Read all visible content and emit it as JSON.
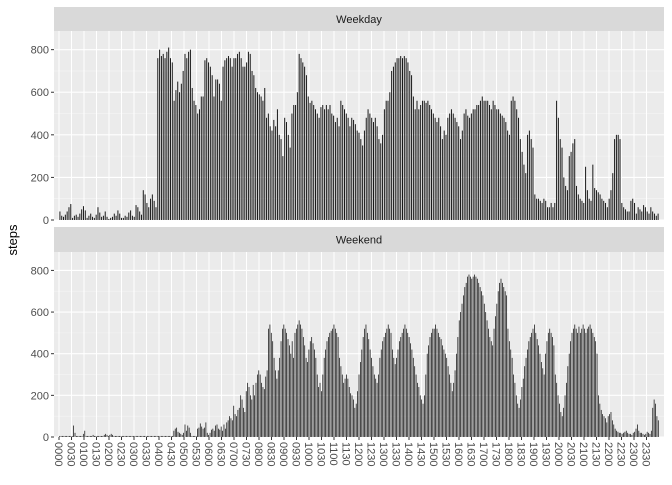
{
  "chart_data": {
    "type": "bar",
    "ylabel": "steps",
    "xlabel": "",
    "ylim": [
      0,
      850
    ],
    "yticks": [
      0,
      200,
      400,
      600,
      800
    ],
    "grid": true,
    "x_tick_labels": [
      "0000",
      "0030",
      "0100",
      "0130",
      "0200",
      "0230",
      "0300",
      "0330",
      "0400",
      "0430",
      "0500",
      "0530",
      "0600",
      "0630",
      "0700",
      "0730",
      "0800",
      "0830",
      "0900",
      "0930",
      "1000",
      "1030",
      "1100",
      "1130",
      "1200",
      "1230",
      "1300",
      "1330",
      "1400",
      "1430",
      "1500",
      "1530",
      "1600",
      "1630",
      "1700",
      "1730",
      "1800",
      "1830",
      "1900",
      "1930",
      "2000",
      "2030",
      "2100",
      "2130",
      "2200",
      "2230",
      "2300",
      "2330"
    ],
    "panels": [
      {
        "strip": "Weekday",
        "values": [
          40,
          20,
          15,
          25,
          40,
          60,
          75,
          10,
          20,
          25,
          15,
          30,
          50,
          65,
          45,
          10,
          20,
          30,
          15,
          10,
          25,
          60,
          35,
          15,
          20,
          40,
          15,
          5,
          10,
          15,
          30,
          20,
          45,
          30,
          10,
          10,
          20,
          15,
          35,
          45,
          20,
          15,
          70,
          60,
          40,
          25,
          140,
          120,
          80,
          60,
          100,
          120,
          90,
          60,
          760,
          800,
          770,
          780,
          760,
          790,
          810,
          760,
          740,
          560,
          610,
          650,
          600,
          640,
          700,
          780,
          760,
          790,
          800,
          620,
          560,
          540,
          500,
          520,
          580,
          580,
          750,
          760,
          740,
          720,
          680,
          580,
          660,
          660,
          640,
          560,
          720,
          750,
          760,
          770,
          760,
          720,
          760,
          760,
          780,
          790,
          760,
          720,
          720,
          740,
          790,
          780,
          700,
          680,
          620,
          600,
          590,
          580,
          560,
          620,
          480,
          500,
          440,
          420,
          470,
          440,
          520,
          400,
          380,
          300,
          480,
          460,
          400,
          340,
          500,
          540,
          540,
          600,
          780,
          760,
          740,
          720,
          680,
          580,
          550,
          560,
          540,
          520,
          500,
          480,
          530,
          540,
          520,
          540,
          520,
          540,
          500,
          490,
          460,
          480,
          440,
          560,
          540,
          520,
          500,
          480,
          440,
          480,
          470,
          450,
          420,
          410,
          380,
          350,
          420,
          480,
          520,
          500,
          480,
          460,
          480,
          440,
          380,
          360,
          400,
          520,
          560,
          560,
          600,
          700,
          720,
          740,
          760,
          760,
          770,
          760,
          770,
          760,
          740,
          700,
          680,
          580,
          520,
          560,
          520,
          540,
          560,
          560,
          550,
          560,
          540,
          520,
          500,
          480,
          460,
          480,
          440,
          380,
          420,
          400,
          480,
          500,
          520,
          500,
          480,
          460,
          440,
          380,
          420,
          500,
          520,
          490,
          480,
          500,
          520,
          520,
          540,
          540,
          560,
          580,
          560,
          560,
          560,
          540,
          520,
          560,
          540,
          520,
          520,
          500,
          490,
          480,
          460,
          420,
          400,
          560,
          580,
          560,
          520,
          480,
          380,
          320,
          260,
          220,
          400,
          420,
          380,
          340,
          120,
          100,
          100,
          90,
          80,
          100,
          90,
          60,
          60,
          80,
          60,
          80,
          560,
          480,
          380,
          340,
          200,
          160,
          140,
          300,
          320,
          360,
          380,
          160,
          120,
          100,
          90,
          80,
          250,
          140,
          100,
          90,
          260,
          150,
          140,
          130,
          120,
          100,
          90,
          80,
          60,
          100,
          140,
          220,
          380,
          400,
          400,
          380,
          80,
          60,
          50,
          40,
          40,
          90,
          100,
          80,
          30,
          60,
          50,
          40,
          70,
          60,
          40,
          30,
          60,
          40,
          30,
          20,
          30
        ]
      },
      {
        "strip": "Weekend",
        "values": [
          5,
          5,
          5,
          5,
          5,
          5,
          5,
          5,
          5,
          5,
          55,
          20,
          5,
          5,
          5,
          5,
          5,
          15,
          30,
          5,
          5,
          5,
          5,
          5,
          10,
          5,
          5,
          5,
          5,
          5,
          5,
          5,
          10,
          15,
          10,
          5,
          10,
          15,
          10,
          5,
          5,
          5,
          5,
          5,
          5,
          5,
          5,
          5,
          5,
          5,
          5,
          5,
          5,
          5,
          5,
          5,
          5,
          5,
          5,
          5,
          5,
          5,
          5,
          5,
          5,
          5,
          5,
          5,
          5,
          5,
          5,
          5,
          5,
          5,
          5,
          5,
          5,
          5,
          5,
          5,
          5,
          5,
          30,
          40,
          45,
          25,
          20,
          15,
          10,
          20,
          60,
          30,
          55,
          45,
          20,
          5,
          5,
          5,
          5,
          40,
          45,
          65,
          50,
          40,
          45,
          70,
          20,
          10,
          20,
          35,
          40,
          30,
          55,
          60,
          40,
          35,
          50,
          30,
          60,
          40,
          70,
          80,
          100,
          90,
          80,
          150,
          110,
          100,
          130,
          140,
          200,
          180,
          140,
          120,
          220,
          260,
          240,
          200,
          180,
          250,
          200,
          260,
          300,
          320,
          300,
          260,
          240,
          230,
          290,
          320,
          520,
          540,
          500,
          460,
          380,
          320,
          280,
          320,
          380,
          460,
          520,
          540,
          520,
          500,
          470,
          440,
          400,
          460,
          380,
          500,
          520,
          540,
          560,
          540,
          520,
          480,
          440,
          380,
          360,
          420,
          460,
          480,
          450,
          420,
          380,
          300,
          240,
          260,
          220,
          300,
          380,
          420,
          460,
          480,
          500,
          510,
          520,
          540,
          520,
          500,
          480,
          380,
          340,
          300,
          260,
          280,
          300,
          280,
          240,
          210,
          200,
          180,
          140,
          160,
          220,
          300,
          360,
          420,
          480,
          520,
          540,
          500,
          470,
          420,
          380,
          340,
          300,
          280,
          260,
          300,
          380,
          420,
          460,
          480,
          500,
          520,
          540,
          520,
          500,
          420,
          380,
          350,
          380,
          420,
          460,
          480,
          500,
          520,
          540,
          520,
          500,
          480,
          450,
          420,
          380,
          340,
          300,
          260,
          240,
          200,
          180,
          160,
          200,
          300,
          400,
          440,
          480,
          500,
          520,
          520,
          540,
          520,
          500,
          480,
          470,
          440,
          420,
          400,
          380,
          340,
          300,
          260,
          220,
          260,
          320,
          400,
          480,
          560,
          600,
          640,
          680,
          720,
          740,
          770,
          780,
          770,
          760,
          770,
          780,
          770,
          760,
          740,
          720,
          700,
          680,
          640,
          600,
          560,
          520,
          480,
          460,
          440,
          520,
          580,
          640,
          700,
          740,
          760,
          740,
          720,
          700,
          680,
          520,
          460,
          420,
          380,
          300,
          260,
          200,
          160,
          140,
          180,
          240,
          280,
          340,
          380,
          420,
          460,
          480,
          500,
          520,
          540,
          500,
          470,
          440,
          400,
          360,
          330,
          300,
          400,
          460,
          500,
          520,
          500,
          480,
          440,
          300,
          260,
          200,
          160,
          120,
          100,
          140,
          200,
          260,
          340,
          400,
          460,
          500,
          520,
          540,
          520,
          500,
          530,
          500,
          520,
          540,
          520,
          500,
          520,
          530,
          540,
          520,
          500,
          480,
          460,
          400,
          200,
          160,
          130,
          110,
          100,
          90,
          70,
          100,
          110,
          120,
          80,
          60,
          40,
          30,
          25,
          20,
          20,
          15,
          20,
          25,
          30,
          20,
          15,
          15,
          10,
          20,
          25,
          40,
          60,
          30,
          20,
          20,
          15,
          10,
          15,
          25,
          20,
          15,
          30,
          140,
          180,
          160,
          100,
          80
        ]
      }
    ]
  }
}
